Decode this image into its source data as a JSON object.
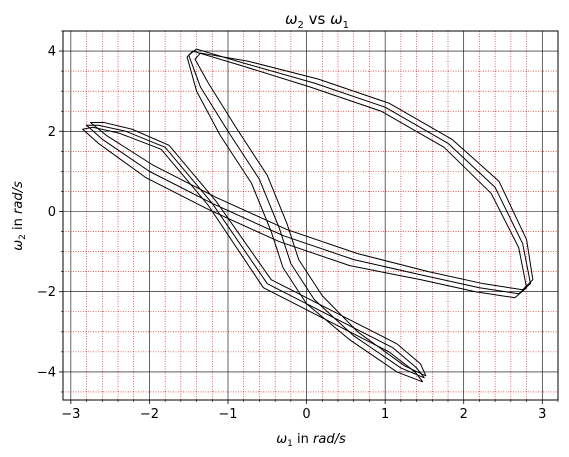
{
  "chart_data": {
    "type": "line",
    "title": "ω₂ vs ω₁",
    "title_main": "ω",
    "title_sub1": "2",
    "title_mid": " vs ",
    "title_sub2": "1",
    "xlabel_var": "ω",
    "xlabel_sub": "1",
    "xlabel_text": " in ",
    "xlabel_unit": "rad/s",
    "ylabel_var": "ω",
    "ylabel_sub": "2",
    "ylabel_text": " in ",
    "ylabel_unit": "rad/s",
    "xlim": [
      -3.1,
      3.2
    ],
    "ylim": [
      -4.7,
      4.5
    ],
    "xticks": [
      -3,
      -2,
      -1,
      0,
      1,
      2,
      3
    ],
    "yticks": [
      -4,
      -2,
      0,
      2,
      4
    ],
    "xtick_labels": [
      "−3",
      "−2",
      "−1",
      "0",
      "1",
      "2",
      "3"
    ],
    "ytick_labels": [
      "−4",
      "−2",
      "0",
      "2",
      "4"
    ],
    "grid": {
      "major": true,
      "minor": true,
      "major_color": "#000000",
      "minor_color": "#cc0000"
    },
    "line_color": "#000000",
    "series": [
      {
        "loop": 1,
        "x": [
          1.5,
          1.2,
          0.6,
          0.1,
          -0.2,
          -0.35,
          -0.6,
          -1.0,
          -1.35,
          -1.5,
          -1.4,
          -0.8,
          0.1,
          1.0,
          1.8,
          2.4,
          2.75,
          2.85,
          2.7,
          2.2,
          1.5,
          0.6,
          -0.3,
          -1.2,
          -2.0,
          -2.6,
          -2.8,
          -2.65,
          -2.3,
          -1.8,
          -1.2,
          -0.5,
          0.4,
          1.1,
          1.4,
          1.5
        ],
        "y": [
          -4.15,
          -3.9,
          -3.1,
          -2.2,
          -1.3,
          -0.4,
          0.8,
          2.0,
          3.1,
          3.9,
          4.05,
          3.7,
          3.2,
          2.6,
          1.7,
          0.6,
          -0.8,
          -1.8,
          -2.05,
          -1.9,
          -1.6,
          -1.2,
          -0.6,
          0.2,
          1.0,
          1.8,
          2.15,
          2.15,
          2.0,
          1.6,
          0.2,
          -1.8,
          -2.7,
          -3.4,
          -3.9,
          -4.15
        ]
      },
      {
        "loop": 2,
        "x": [
          1.48,
          1.15,
          0.55,
          0.0,
          -0.3,
          -0.45,
          -0.7,
          -1.1,
          -1.4,
          -1.52,
          -1.45,
          -0.85,
          0.05,
          0.95,
          1.75,
          2.35,
          2.7,
          2.8,
          2.65,
          2.15,
          1.45,
          0.55,
          -0.35,
          -1.25,
          -2.05,
          -2.65,
          -2.85,
          -2.72,
          -2.38,
          -1.85,
          -1.25,
          -0.55,
          0.35,
          1.05,
          1.38,
          1.48
        ],
        "y": [
          -4.25,
          -4.0,
          -3.2,
          -2.3,
          -1.4,
          -0.5,
          0.7,
          1.9,
          3.0,
          3.85,
          4.0,
          3.65,
          3.1,
          2.5,
          1.6,
          0.45,
          -0.9,
          -1.9,
          -2.15,
          -2.0,
          -1.7,
          -1.35,
          -0.75,
          0.05,
          0.85,
          1.7,
          2.05,
          2.1,
          1.95,
          1.55,
          0.15,
          -1.9,
          -2.8,
          -3.5,
          -4.0,
          -4.25
        ]
      },
      {
        "loop": 3,
        "x": [
          1.52,
          1.25,
          0.65,
          0.2,
          -0.1,
          -0.25,
          -0.5,
          -0.9,
          -1.25,
          -1.42,
          -1.35,
          -0.75,
          0.15,
          1.05,
          1.85,
          2.45,
          2.8,
          2.88,
          2.75,
          2.25,
          1.55,
          0.65,
          -0.25,
          -1.15,
          -1.95,
          -2.55,
          -2.75,
          -2.58,
          -2.22,
          -1.75,
          -1.15,
          -0.45,
          0.45,
          1.15,
          1.45,
          1.52
        ],
        "y": [
          -4.1,
          -3.85,
          -3.0,
          -2.1,
          -1.2,
          -0.3,
          0.9,
          2.1,
          3.2,
          3.8,
          3.95,
          3.75,
          3.3,
          2.7,
          1.8,
          0.75,
          -0.7,
          -1.7,
          -1.95,
          -1.8,
          -1.5,
          -1.05,
          -0.45,
          0.35,
          1.15,
          1.9,
          2.22,
          2.22,
          2.05,
          1.65,
          0.25,
          -1.7,
          -2.6,
          -3.3,
          -3.8,
          -4.1
        ]
      }
    ]
  }
}
